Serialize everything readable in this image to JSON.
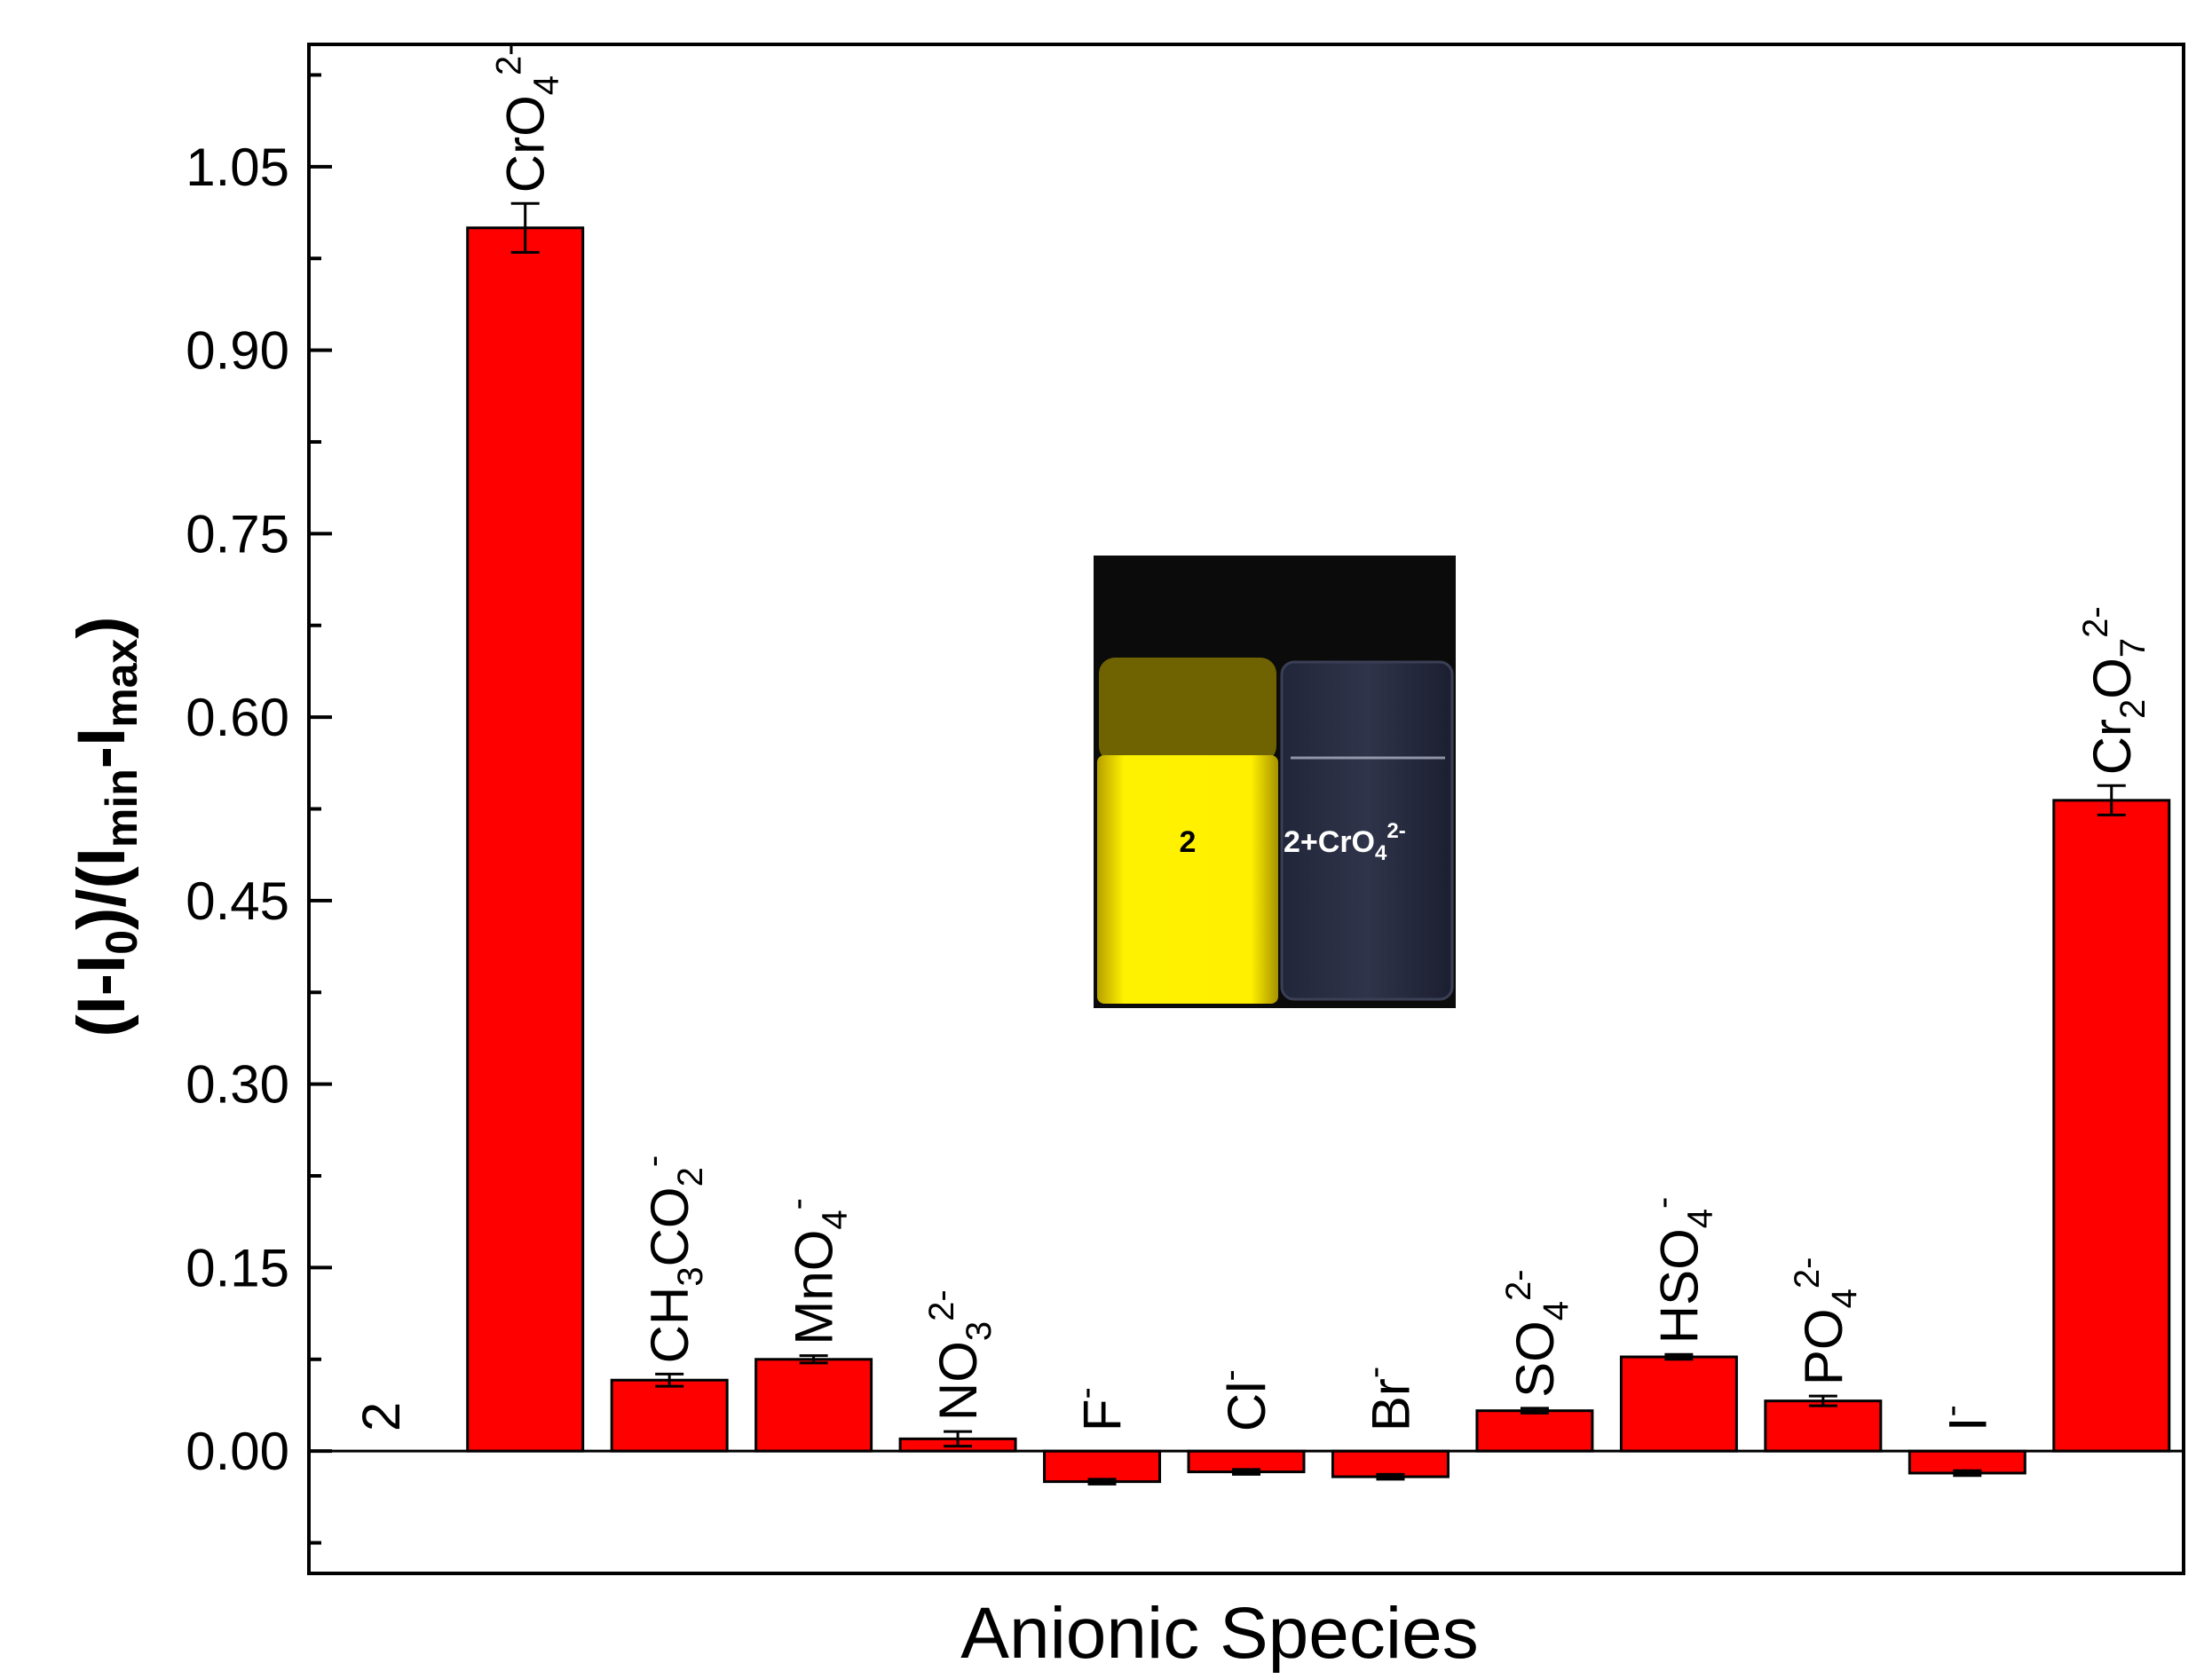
{
  "chart_data": {
    "type": "bar",
    "xlabel": "Anionic Species",
    "ylabel": "(I-I0)/(Imin-Imax)",
    "ylim": [
      -0.1,
      1.15
    ],
    "yticks": [
      0.0,
      0.15,
      0.3,
      0.45,
      0.6,
      0.75,
      0.9,
      1.05
    ],
    "ytick_labels": [
      "0.00",
      "0.15",
      "0.30",
      "0.45",
      "0.60",
      "0.75",
      "0.90",
      "1.05"
    ],
    "bar_color": "#ff0000",
    "grid": false,
    "categories": [
      "2",
      "CrO4 2-",
      "CH3CO2 -",
      "MnO4 -",
      "NO3 2-",
      "F -",
      "Cl -",
      "Br -",
      "SO4 2-",
      "HSO4 -",
      "PO4 2-",
      "I -",
      "Cr2O7 2-"
    ],
    "values": [
      0.0,
      1.0,
      0.058,
      0.075,
      0.01,
      -0.025,
      -0.017,
      -0.021,
      0.033,
      0.077,
      0.041,
      -0.018,
      0.532
    ],
    "errors": [
      0.0,
      0.02,
      0.005,
      0.003,
      0.006,
      0.002,
      0.002,
      0.002,
      0.002,
      0.002,
      0.004,
      0.002,
      0.012
    ],
    "inset": {
      "label_left": "2",
      "label_right": "2+CrO4 2-"
    }
  }
}
